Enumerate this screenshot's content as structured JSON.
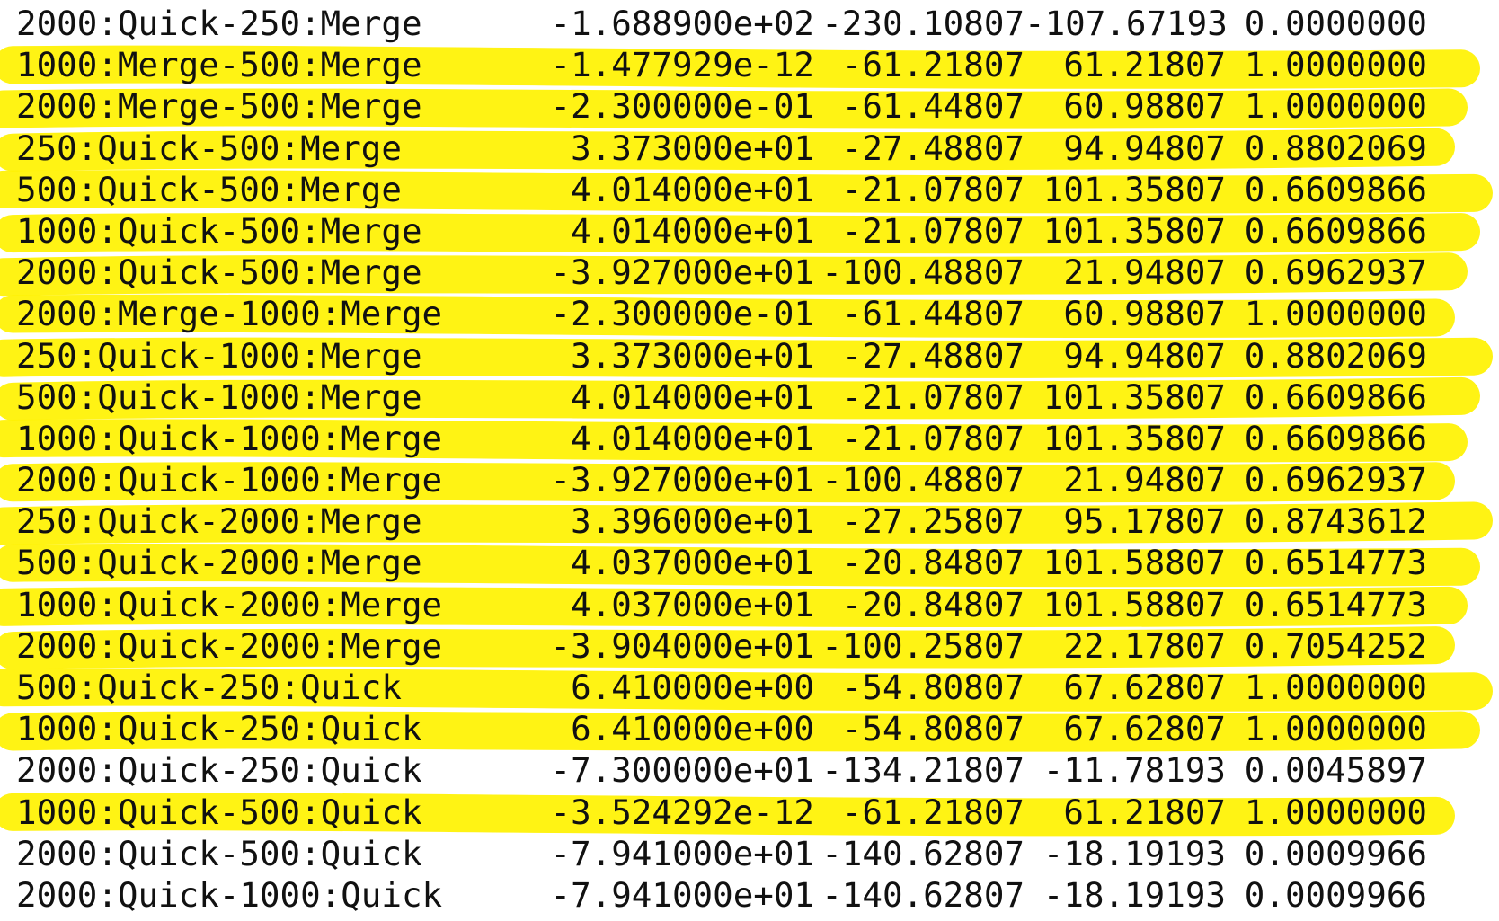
{
  "table": {
    "rows": [
      {
        "label": "2000:Quick-250:Merge",
        "diff": "-1.688900e+02",
        "lwr": "-230.10807",
        "upr": "-107.67193",
        "padj": "0.0000000",
        "highlighted": false
      },
      {
        "label": "1000:Merge-500:Merge",
        "diff": "-1.477929e-12",
        "lwr": "-61.21807",
        "upr": "61.21807",
        "padj": "1.0000000",
        "highlighted": true
      },
      {
        "label": "2000:Merge-500:Merge",
        "diff": "-2.300000e-01",
        "lwr": "-61.44807",
        "upr": "60.98807",
        "padj": "1.0000000",
        "highlighted": true
      },
      {
        "label": "250:Quick-500:Merge",
        "diff": "3.373000e+01",
        "lwr": "-27.48807",
        "upr": "94.94807",
        "padj": "0.8802069",
        "highlighted": true
      },
      {
        "label": "500:Quick-500:Merge",
        "diff": "4.014000e+01",
        "lwr": "-21.07807",
        "upr": "101.35807",
        "padj": "0.6609866",
        "highlighted": true
      },
      {
        "label": "1000:Quick-500:Merge",
        "diff": "4.014000e+01",
        "lwr": "-21.07807",
        "upr": "101.35807",
        "padj": "0.6609866",
        "highlighted": true
      },
      {
        "label": "2000:Quick-500:Merge",
        "diff": "-3.927000e+01",
        "lwr": "-100.48807",
        "upr": "21.94807",
        "padj": "0.6962937",
        "highlighted": true
      },
      {
        "label": "2000:Merge-1000:Merge",
        "diff": "-2.300000e-01",
        "lwr": "-61.44807",
        "upr": "60.98807",
        "padj": "1.0000000",
        "highlighted": true
      },
      {
        "label": "250:Quick-1000:Merge",
        "diff": "3.373000e+01",
        "lwr": "-27.48807",
        "upr": "94.94807",
        "padj": "0.8802069",
        "highlighted": true
      },
      {
        "label": "500:Quick-1000:Merge",
        "diff": "4.014000e+01",
        "lwr": "-21.07807",
        "upr": "101.35807",
        "padj": "0.6609866",
        "highlighted": true
      },
      {
        "label": "1000:Quick-1000:Merge",
        "diff": "4.014000e+01",
        "lwr": "-21.07807",
        "upr": "101.35807",
        "padj": "0.6609866",
        "highlighted": true
      },
      {
        "label": "2000:Quick-1000:Merge",
        "diff": "-3.927000e+01",
        "lwr": "-100.48807",
        "upr": "21.94807",
        "padj": "0.6962937",
        "highlighted": true
      },
      {
        "label": "250:Quick-2000:Merge",
        "diff": "3.396000e+01",
        "lwr": "-27.25807",
        "upr": "95.17807",
        "padj": "0.8743612",
        "highlighted": true
      },
      {
        "label": "500:Quick-2000:Merge",
        "diff": "4.037000e+01",
        "lwr": "-20.84807",
        "upr": "101.58807",
        "padj": "0.6514773",
        "highlighted": true
      },
      {
        "label": "1000:Quick-2000:Merge",
        "diff": "4.037000e+01",
        "lwr": "-20.84807",
        "upr": "101.58807",
        "padj": "0.6514773",
        "highlighted": true
      },
      {
        "label": "2000:Quick-2000:Merge",
        "diff": "-3.904000e+01",
        "lwr": "-100.25807",
        "upr": "22.17807",
        "padj": "0.7054252",
        "highlighted": true
      },
      {
        "label": "500:Quick-250:Quick",
        "diff": "6.410000e+00",
        "lwr": "-54.80807",
        "upr": "67.62807",
        "padj": "1.0000000",
        "highlighted": true
      },
      {
        "label": "1000:Quick-250:Quick",
        "diff": "6.410000e+00",
        "lwr": "-54.80807",
        "upr": "67.62807",
        "padj": "1.0000000",
        "highlighted": true
      },
      {
        "label": "2000:Quick-250:Quick",
        "diff": "-7.300000e+01",
        "lwr": "-134.21807",
        "upr": "-11.78193",
        "padj": "0.0045897",
        "highlighted": false
      },
      {
        "label": "1000:Quick-500:Quick",
        "diff": "-3.524292e-12",
        "lwr": "-61.21807",
        "upr": "61.21807",
        "padj": "1.0000000",
        "highlighted": true
      },
      {
        "label": "2000:Quick-500:Quick",
        "diff": "-7.941000e+01",
        "lwr": "-140.62807",
        "upr": "-18.19193",
        "padj": "0.0009966",
        "highlighted": false
      },
      {
        "label": "2000:Quick-1000:Quick",
        "diff": "-7.941000e+01",
        "lwr": "-140.62807",
        "upr": "-18.19193",
        "padj": "0.0009966",
        "highlighted": false
      }
    ]
  },
  "colors": {
    "background": "#ffffff",
    "text": "#111111",
    "highlighter": "#fff200"
  }
}
